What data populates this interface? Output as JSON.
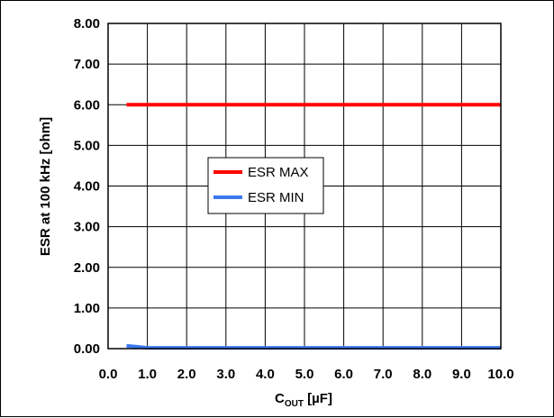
{
  "chart_data": {
    "type": "line",
    "title": "",
    "xlabel": {
      "main": "C",
      "sub": "OUT",
      "unit": " [µF]"
    },
    "ylabel": "ESR at 100 kHz [ohm]",
    "xlim": [
      0.0,
      10.0
    ],
    "ylim": [
      0.0,
      8.0
    ],
    "x_ticks": [
      "0.0",
      "1.0",
      "2.0",
      "3.0",
      "4.0",
      "5.0",
      "6.0",
      "7.0",
      "8.0",
      "9.0",
      "10.0"
    ],
    "y_ticks": [
      "0.00",
      "1.00",
      "2.00",
      "3.00",
      "4.00",
      "5.00",
      "6.00",
      "7.00",
      "8.00"
    ],
    "grid": true,
    "legend_position": "center-left",
    "series": [
      {
        "name": "ESR MAX",
        "color": "#ff0000",
        "x": [
          0.47,
          1.0,
          2.0,
          3.0,
          4.0,
          5.0,
          6.0,
          7.0,
          8.0,
          9.0,
          10.0
        ],
        "y": [
          6.0,
          6.0,
          6.0,
          6.0,
          6.0,
          6.0,
          6.0,
          6.0,
          6.0,
          6.0,
          6.0
        ]
      },
      {
        "name": "ESR MIN",
        "color": "#3b78f0",
        "x": [
          0.47,
          0.7,
          1.0,
          2.0,
          3.0,
          4.0,
          5.0,
          6.0,
          7.0,
          8.0,
          9.0,
          10.0
        ],
        "y": [
          0.07,
          0.05,
          0.02,
          0.02,
          0.02,
          0.02,
          0.02,
          0.02,
          0.02,
          0.02,
          0.02,
          0.02
        ]
      }
    ]
  }
}
